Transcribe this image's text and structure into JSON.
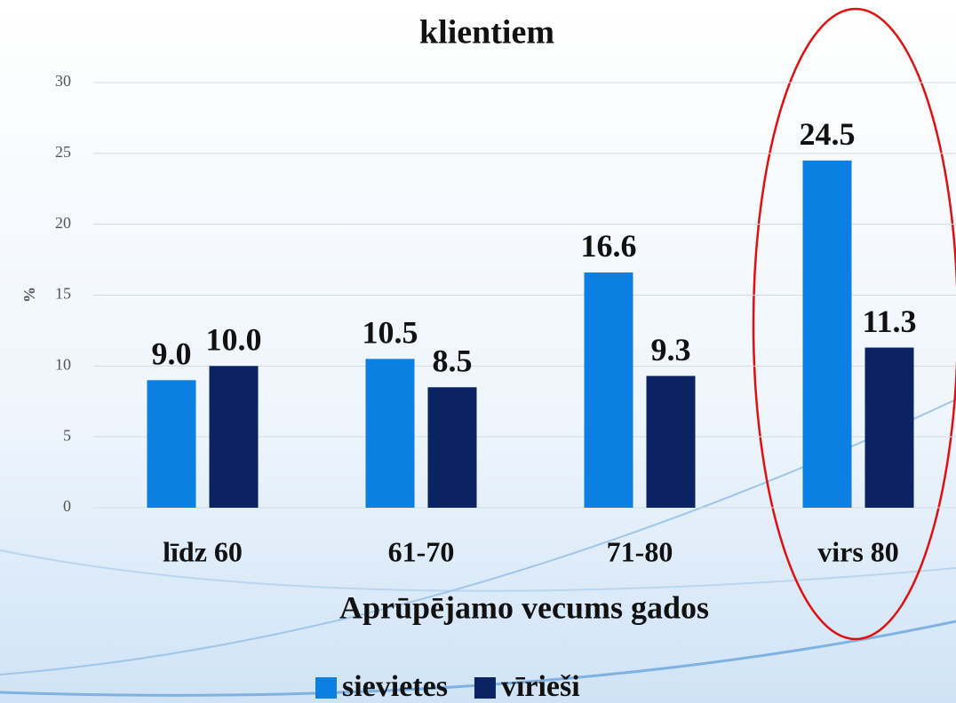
{
  "chart_data": {
    "type": "bar",
    "title": "klientiem",
    "x_label": "Aprūpējamo vecums gados",
    "y_label": "%",
    "categories": [
      "līdz 60",
      "61-70",
      "71-80",
      "virs 80"
    ],
    "series": [
      {
        "name": "sievietes",
        "color": "#0c7fe2",
        "values": [
          9.0,
          10.5,
          16.6,
          24.5
        ],
        "value_labels": [
          "9.0",
          "10.5",
          "16.6",
          "24.5"
        ]
      },
      {
        "name": "vīrieši",
        "color": "#0b2263",
        "values": [
          10.0,
          8.5,
          9.3,
          11.3
        ],
        "value_labels": [
          "10.0",
          "8.5",
          "9.3",
          "11.3"
        ]
      }
    ],
    "ylim": [
      0,
      30
    ],
    "yticks": [
      0,
      5,
      10,
      15,
      20,
      25,
      30
    ],
    "grid": true,
    "legend": "bottom"
  }
}
